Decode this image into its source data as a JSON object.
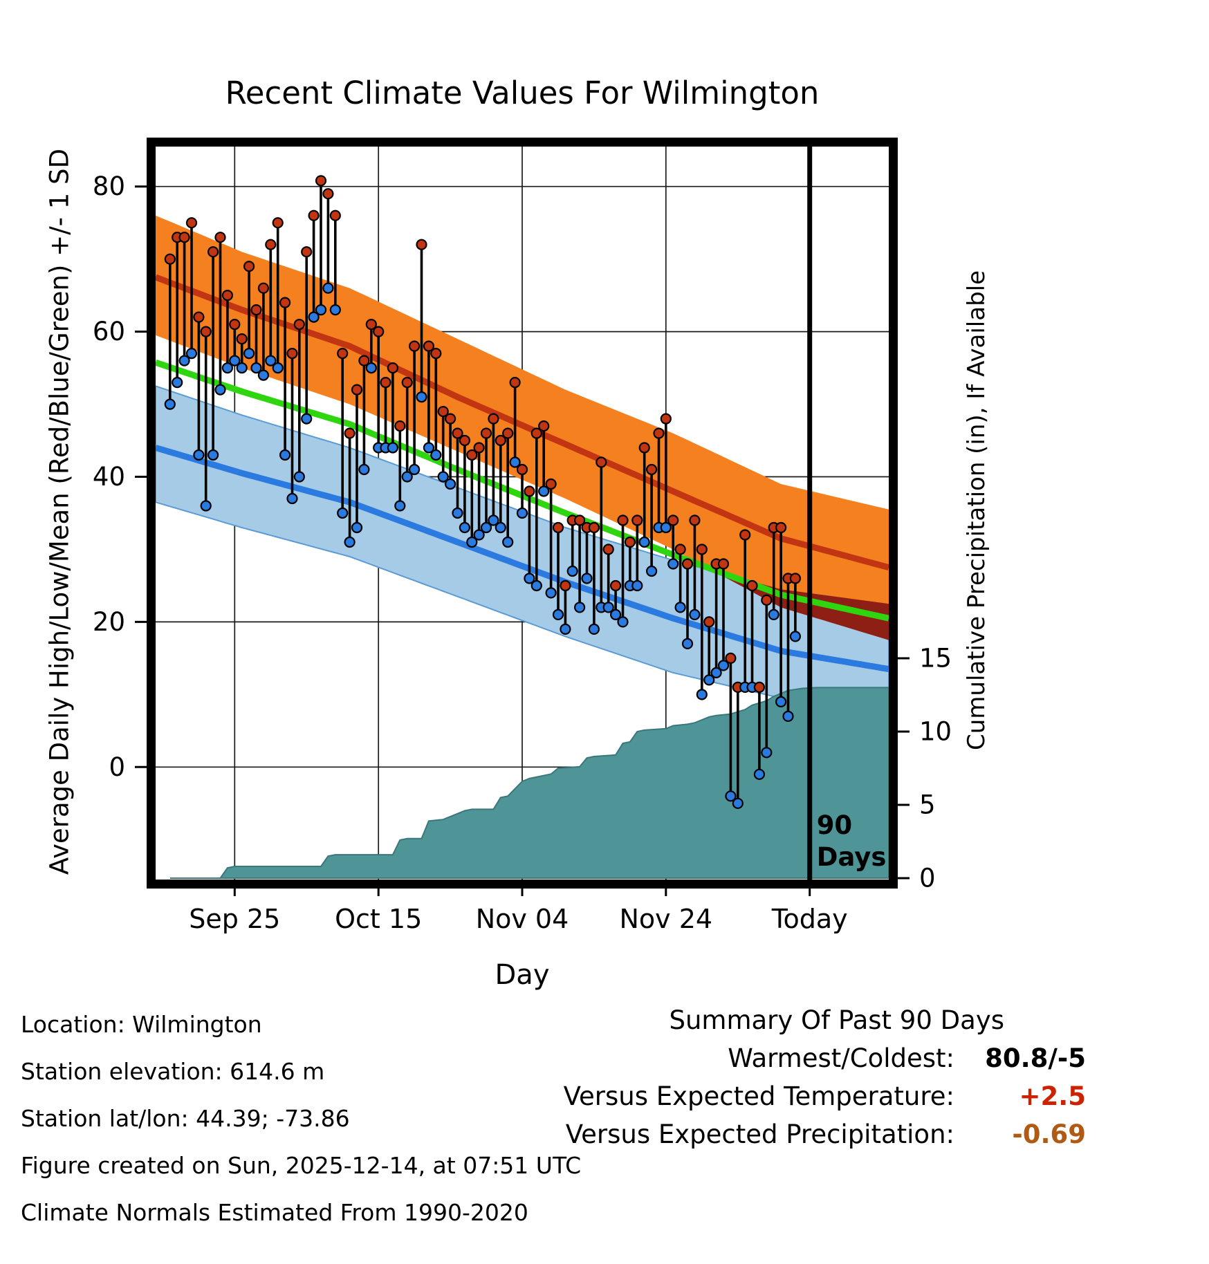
{
  "title": "Recent Climate Values For Wilmington",
  "axes": {
    "y_left": {
      "label": "Average Daily High/Low/Mean (Red/Blue/Green) +/- 1 SD",
      "ticks": [
        80,
        60,
        40,
        20,
        0
      ]
    },
    "y_right": {
      "label": "Cumulative Precipitation (in), If Available",
      "ticks": [
        15,
        10,
        5,
        0
      ]
    },
    "x": {
      "label": "Day",
      "ticks": [
        {
          "day": 9,
          "label": "Sep 25"
        },
        {
          "day": 29,
          "label": "Oct 15"
        },
        {
          "day": 49,
          "label": "Nov 04"
        },
        {
          "day": 69,
          "label": "Nov 24"
        },
        {
          "day": 89,
          "label": "Today"
        }
      ]
    }
  },
  "annotations": {
    "period_line1": "90",
    "period_line2": "Days"
  },
  "chart_data": {
    "type": "line",
    "title": "Recent Climate Values For Wilmington",
    "x_domain": [
      -2,
      100
    ],
    "ylim": [
      -15.5,
      85.5
    ],
    "today_day": 89,
    "daily": {
      "first_day_index": 0,
      "high": [
        70,
        73,
        73,
        75,
        62,
        60,
        71,
        73,
        65,
        61,
        59,
        69,
        63,
        66,
        72,
        75,
        64,
        57,
        61,
        71,
        76,
        80.8,
        79,
        76,
        57,
        46,
        52,
        56,
        61,
        60,
        53,
        55,
        47,
        53,
        58,
        72,
        58,
        57,
        49,
        48,
        46,
        45,
        43,
        44,
        46,
        48,
        45,
        46,
        53,
        41,
        38,
        46,
        47,
        39,
        33,
        25,
        34,
        34,
        33,
        33,
        42,
        30,
        25,
        34,
        31,
        34,
        44,
        41,
        46,
        48,
        34,
        30,
        28,
        34,
        30,
        20,
        28,
        28,
        15,
        11,
        32,
        25,
        11,
        23,
        33,
        33,
        26,
        26
      ],
      "low": [
        50,
        53,
        56,
        57,
        43,
        36,
        43,
        52,
        55,
        56,
        55,
        57,
        55,
        54,
        56,
        55,
        43,
        37,
        40,
        48,
        62,
        63,
        66,
        63,
        35,
        31,
        33,
        41,
        55,
        44,
        44,
        44,
        36,
        40,
        41,
        51,
        44,
        43,
        40,
        39,
        35,
        33,
        31,
        32,
        33,
        34,
        33,
        31,
        42,
        35,
        26,
        25,
        38,
        24,
        21,
        19,
        27,
        22,
        26,
        19,
        22,
        22,
        21,
        20,
        25,
        25,
        31,
        27,
        33,
        33,
        28,
        22,
        17,
        21,
        10,
        12,
        13,
        14,
        -4,
        -5,
        11,
        11,
        -1,
        2,
        21,
        9,
        7,
        18
      ]
    },
    "normals": {
      "days": [
        -2,
        10,
        25,
        40,
        55,
        70,
        85,
        100
      ],
      "high_upper": [
        76,
        71,
        66,
        59,
        52,
        46,
        39,
        35.5
      ],
      "high_mean": [
        67.5,
        63,
        58,
        51,
        44.5,
        38,
        31.5,
        27.5
      ],
      "high_lower": [
        59.5,
        55,
        50,
        43.5,
        37,
        30,
        22,
        17.5
      ],
      "low_upper": [
        52.5,
        48.5,
        44,
        38.5,
        33,
        28.5,
        24.5,
        22.5
      ],
      "low_mean": [
        44,
        40.5,
        36.5,
        31,
        25.5,
        20.5,
        16,
        13.5
      ],
      "low_lower": [
        36.5,
        33,
        29,
        23.5,
        18,
        13,
        9.5,
        8
      ]
    },
    "precip_days": [
      0,
      7,
      8,
      9,
      21,
      22,
      23,
      31,
      32,
      33,
      35,
      36,
      38,
      41,
      42,
      45,
      46,
      47,
      49,
      50,
      53,
      54,
      57,
      58,
      59,
      62,
      63,
      64,
      65,
      66,
      69,
      70,
      72,
      73,
      75,
      76,
      78,
      80,
      81,
      83,
      84,
      85,
      86,
      88,
      90,
      100
    ],
    "precip_in": [
      0,
      0,
      0.7,
      0.8,
      0.8,
      1.5,
      1.6,
      1.6,
      2.6,
      2.7,
      2.7,
      3.9,
      4.0,
      4.6,
      4.7,
      4.7,
      5.5,
      5.6,
      6.6,
      6.8,
      7.1,
      7.5,
      7.6,
      8.2,
      8.3,
      8.4,
      9.2,
      9.3,
      10.0,
      10.1,
      10.2,
      10.4,
      10.5,
      10.6,
      11.0,
      11.1,
      11.2,
      11.5,
      11.8,
      12.1,
      12.4,
      12.6,
      12.8,
      12.95,
      13.0,
      13.0
    ],
    "colors": {
      "grid": "#1a1a1a",
      "frame": "#000000",
      "high_band": "#f5801f",
      "high_line": "#c23512",
      "low_band": "#a5cbe6",
      "low_band_edge": "#5b9bd5",
      "low_line": "#2b7ae0",
      "mean_line": "#2fd60f",
      "overlap_band": "#8e1f14",
      "precip_fill": "#4f9598",
      "precip_edge": "#39777b",
      "marker_high": "#c23512",
      "marker_low": "#2b7ae0",
      "stem": "#000000",
      "today_line": "#000000"
    }
  },
  "footer": [
    "Location: Wilmington",
    "Station elevation: 614.6 m",
    "Station lat/lon: 44.39; -73.86",
    "Figure created on Sun, 2025-12-14, at 07:51 UTC",
    "Climate Normals Estimated From 1990-2020"
  ],
  "summary": {
    "heading": "Summary Of Past 90 Days",
    "rows": [
      {
        "label": "Warmest/Coldest:",
        "value": "80.8/-5",
        "color": "#000000"
      },
      {
        "label": "Versus Expected Temperature:",
        "value": "+2.5",
        "color": "#cc2200"
      },
      {
        "label": "Versus Expected Precipitation:",
        "value": "-0.69",
        "color": "#b05a14"
      }
    ]
  }
}
